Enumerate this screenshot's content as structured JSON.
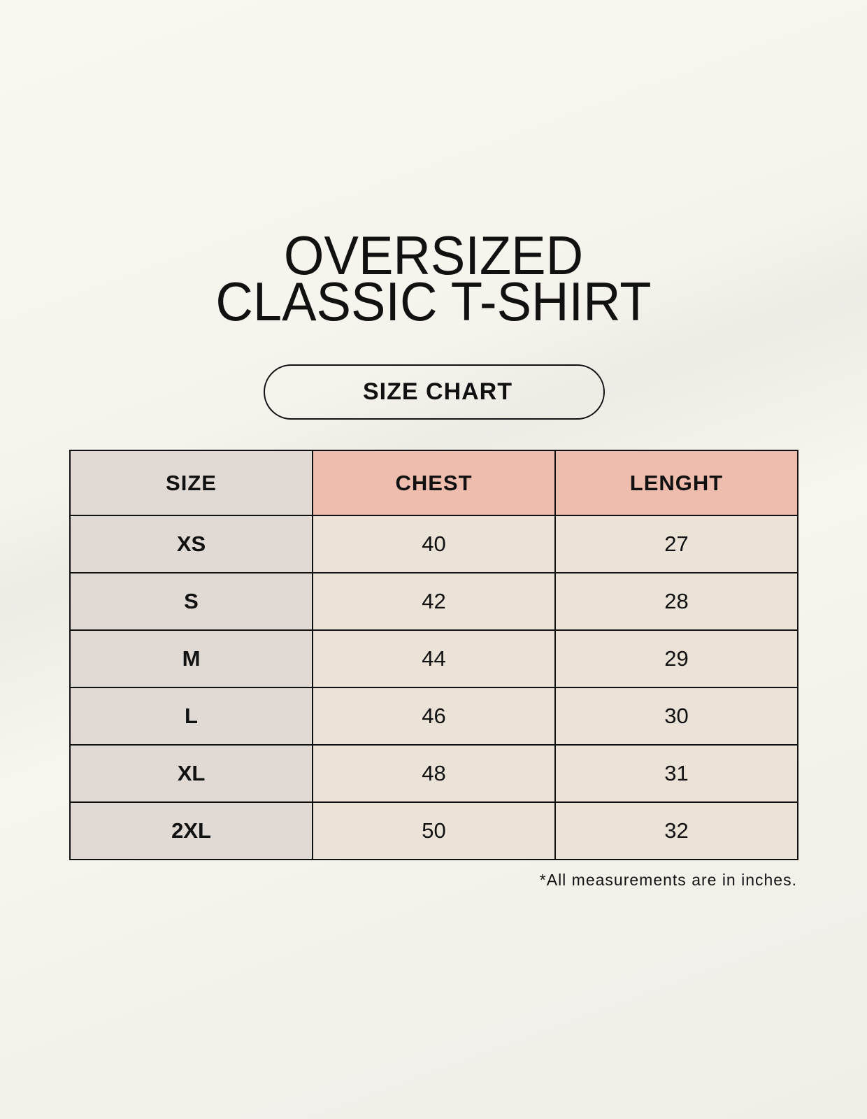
{
  "title_lines": [
    "OVERSIZED",
    "CLASSIC T-SHIRT"
  ],
  "badge": "SIZE CHART",
  "table": {
    "headers": [
      "SIZE",
      "CHEST",
      "LENGHT"
    ],
    "rows": [
      [
        "XS",
        "40",
        "27"
      ],
      [
        "S",
        "42",
        "28"
      ],
      [
        "M",
        "44",
        "29"
      ],
      [
        "L",
        "46",
        "30"
      ],
      [
        "XL",
        "48",
        "31"
      ],
      [
        "2XL",
        "50",
        "32"
      ]
    ]
  },
  "footnote": "*All measurements are in inches.",
  "colors": {
    "header_accent": "#eebdae",
    "size_column": "#e1d9d3",
    "cell": "#ebe3d8",
    "background": "#f8f5ee"
  }
}
